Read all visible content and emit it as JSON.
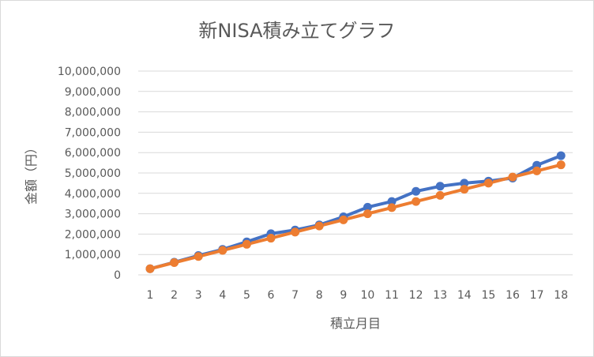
{
  "chart_data": {
    "type": "line",
    "title": "新NISA積み立てグラフ",
    "xlabel": "積立月目",
    "ylabel": "金額（円）",
    "categories": [
      "1",
      "2",
      "3",
      "4",
      "5",
      "6",
      "7",
      "8",
      "9",
      "10",
      "11",
      "12",
      "13",
      "14",
      "15",
      "16",
      "17",
      "18"
    ],
    "ylim": [
      0,
      10000000
    ],
    "y_ticks": [
      0,
      1000000,
      2000000,
      3000000,
      4000000,
      5000000,
      6000000,
      7000000,
      8000000,
      9000000,
      10000000
    ],
    "y_tick_labels": [
      "0",
      "1,000,000",
      "2,000,000",
      "3,000,000",
      "4,000,000",
      "5,000,000",
      "6,000,000",
      "7,000,000",
      "8,000,000",
      "9,000,000",
      "10,000,000"
    ],
    "grid": true,
    "legend": "none",
    "series": [
      {
        "color": "#4472c4",
        "values": [
          300000,
          620000,
          950000,
          1250000,
          1620000,
          2020000,
          2200000,
          2450000,
          2850000,
          3320000,
          3600000,
          4100000,
          4350000,
          4500000,
          4600000,
          4750000,
          5380000,
          5850000
        ]
      },
      {
        "color": "#ed7d31",
        "values": [
          300000,
          600000,
          900000,
          1200000,
          1500000,
          1800000,
          2100000,
          2400000,
          2700000,
          3000000,
          3300000,
          3600000,
          3900000,
          4200000,
          4500000,
          4800000,
          5100000,
          5400000
        ]
      }
    ]
  }
}
